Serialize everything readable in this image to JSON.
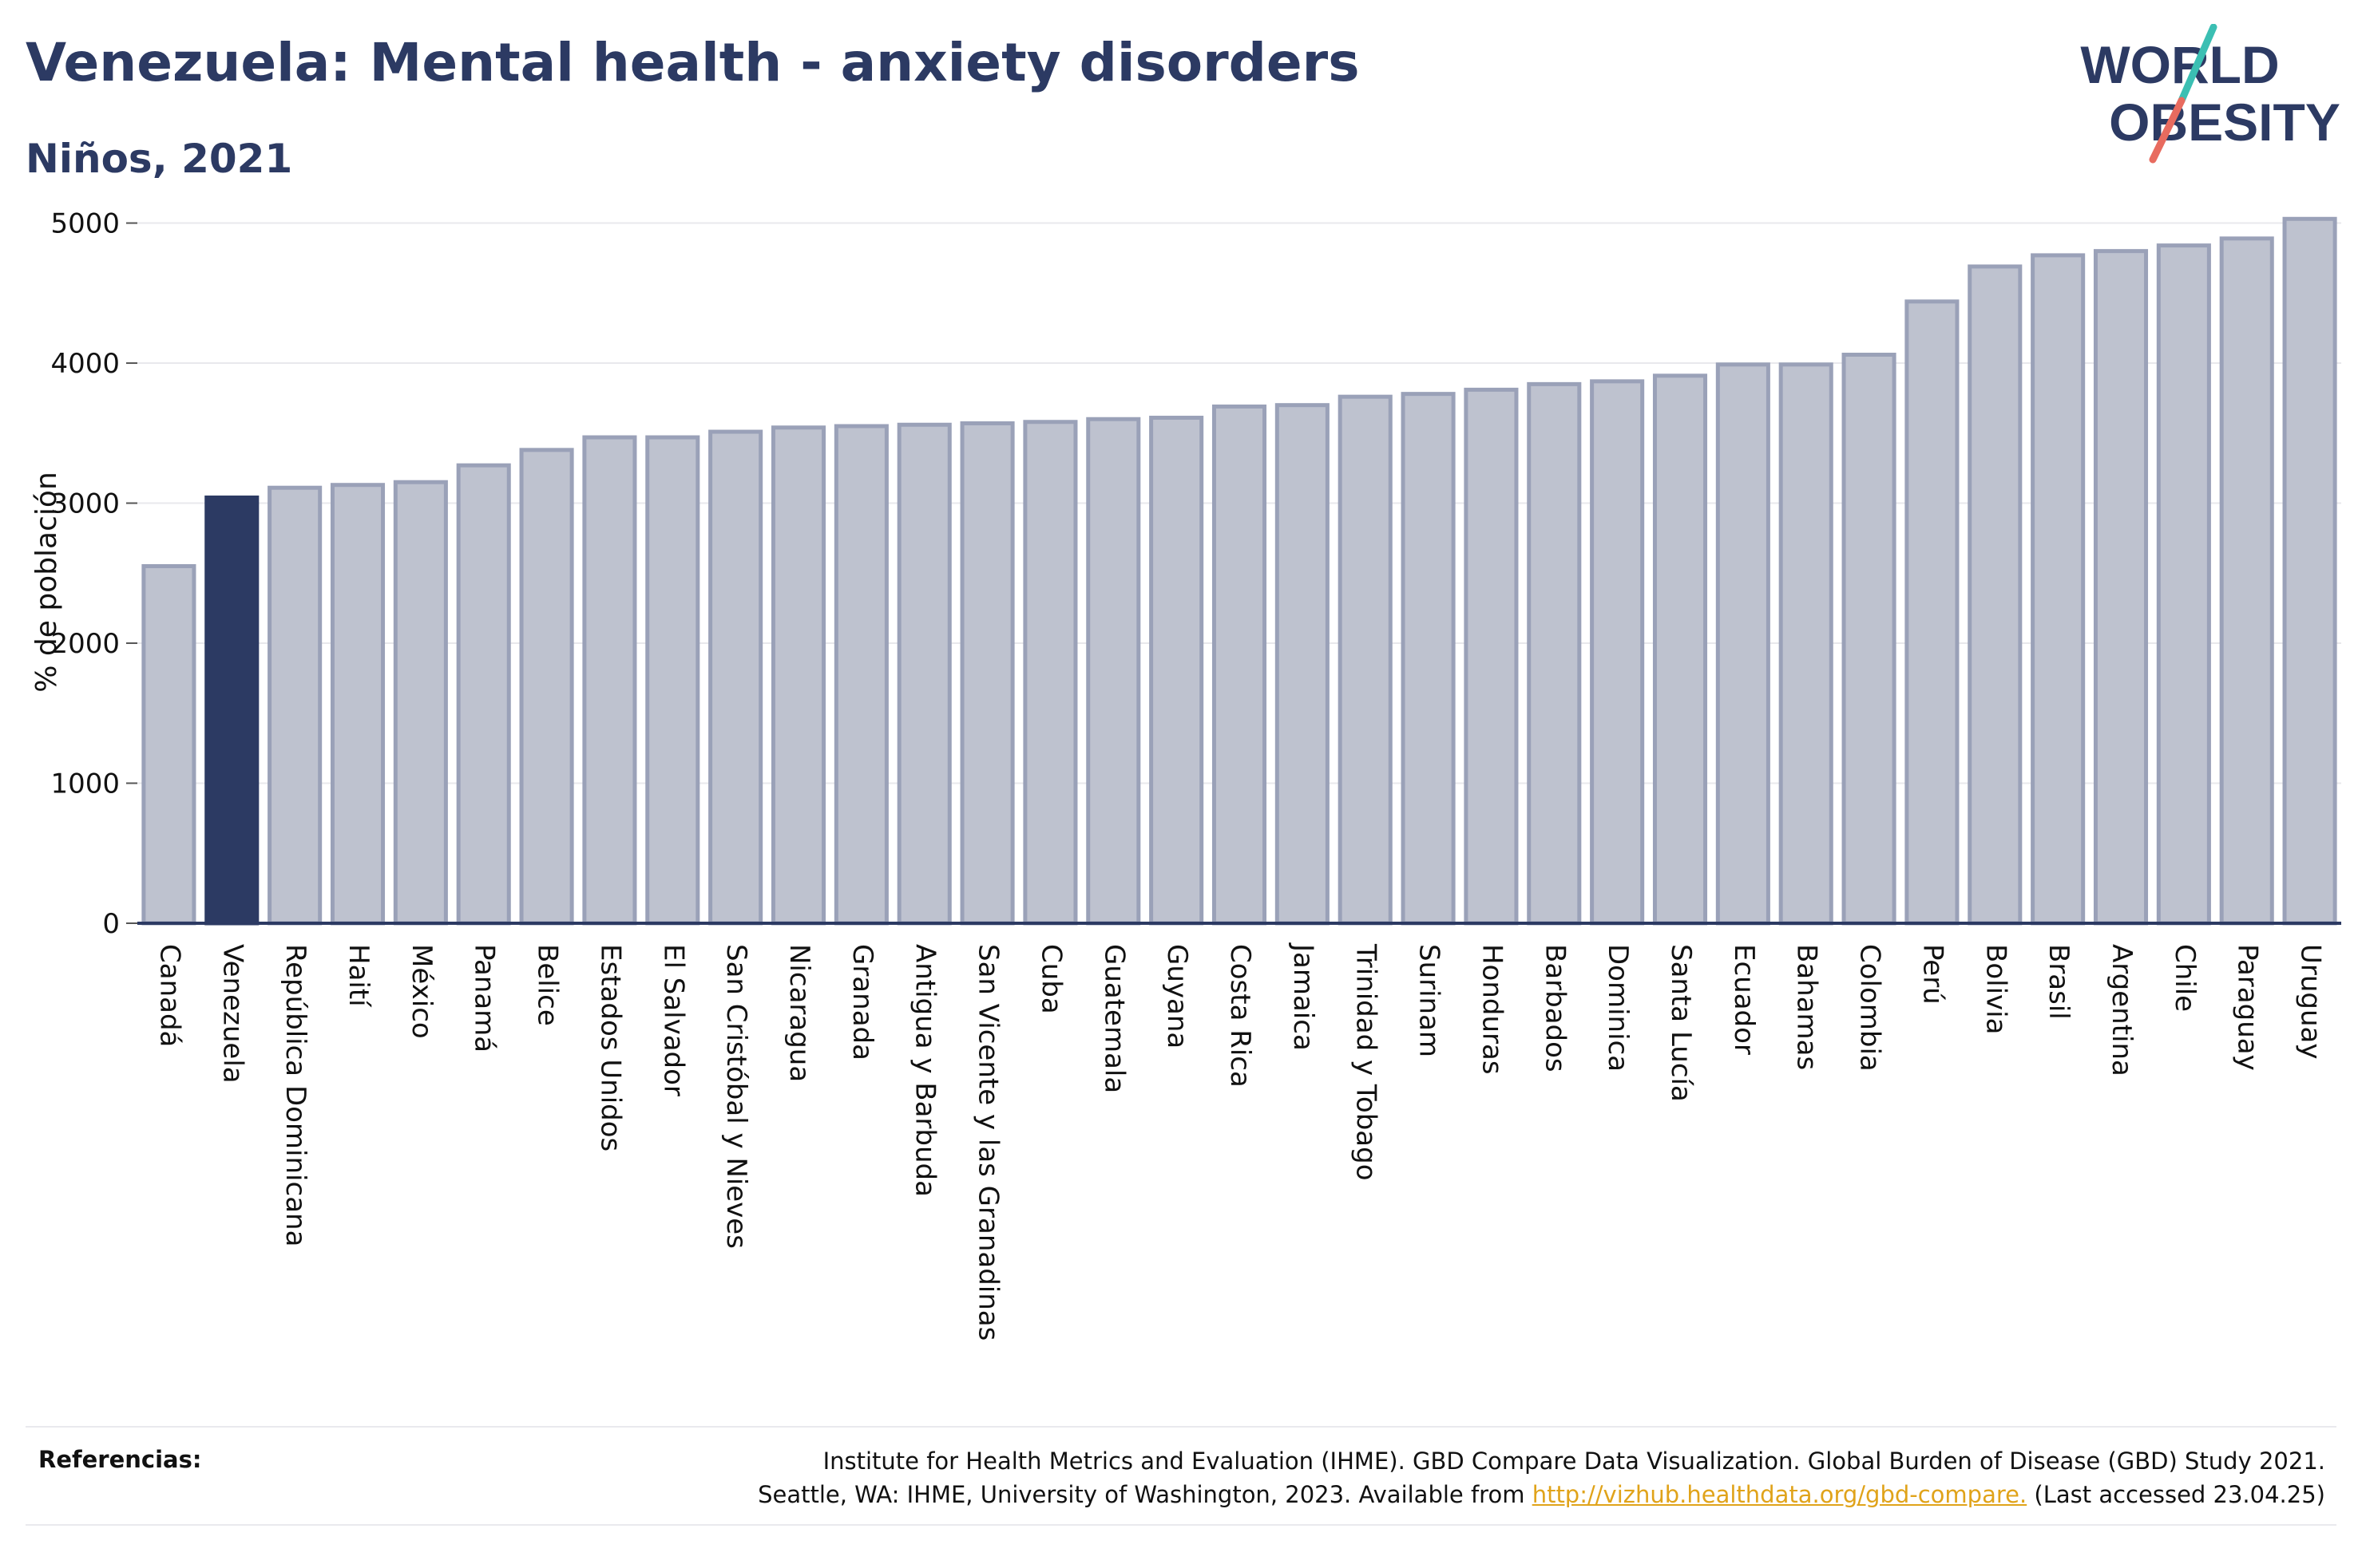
{
  "header": {
    "title": "Venezuela: Mental health - anxiety disorders",
    "subtitle": "Niños, 2021"
  },
  "logo": {
    "line1": "WORLD",
    "line2": "OBESITY",
    "colors": {
      "text": "#2c3a63",
      "slash_top": "#3bbfb3",
      "slash_bottom": "#e86b5f"
    }
  },
  "chart_data": {
    "type": "bar",
    "title": "Venezuela: Mental health - anxiety disorders",
    "subtitle": "Niños, 2021",
    "xlabel": "",
    "ylabel": "% de población",
    "ylim": [
      0,
      5100
    ],
    "yticks": [
      0,
      1000,
      2000,
      3000,
      4000,
      5000
    ],
    "grid": true,
    "highlight": "Venezuela",
    "colors": {
      "bar": "#bec2cf",
      "bar_edge": "#9aa1b8",
      "highlight": "#2c3a63",
      "grid": "#e8e8ec",
      "axis": "#2c3a63"
    },
    "categories": [
      "Canadá",
      "Venezuela",
      "República Dominicana",
      "Haití",
      "México",
      "Panamá",
      "Belice",
      "Estados Unidos",
      "El Salvador",
      "San Cristóbal y Nieves",
      "Nicaragua",
      "Granada",
      "Antigua y Barbuda",
      "San Vicente y las Granadinas",
      "Cuba",
      "Guatemala",
      "Guyana",
      "Costa Rica",
      "Jamaica",
      "Trinidad y Tobago",
      "Surinam",
      "Honduras",
      "Barbados",
      "Dominica",
      "Santa Lucía",
      "Ecuador",
      "Bahamas",
      "Colombia",
      "Perú",
      "Bolivia",
      "Brasil",
      "Argentina",
      "Chile",
      "Paraguay",
      "Uruguay"
    ],
    "values": [
      2550,
      3040,
      3110,
      3130,
      3150,
      3270,
      3380,
      3470,
      3470,
      3510,
      3540,
      3550,
      3560,
      3570,
      3580,
      3600,
      3610,
      3690,
      3700,
      3760,
      3780,
      3810,
      3850,
      3870,
      3910,
      3990,
      3990,
      4060,
      4440,
      4690,
      4770,
      4800,
      4840,
      4890,
      5030
    ]
  },
  "references": {
    "label": "Referencias:",
    "line1": "Institute for Health Metrics and Evaluation (IHME). GBD Compare Data Visualization. Global Burden of Disease (GBD) Study 2021.",
    "line2_prefix": "Seattle, WA: IHME, University of Washington, 2023. Available from",
    "link": "http://vizhub.healthdata.org/gbd-compare.",
    "line2_suffix": "(Last accessed 23.04.25)"
  }
}
